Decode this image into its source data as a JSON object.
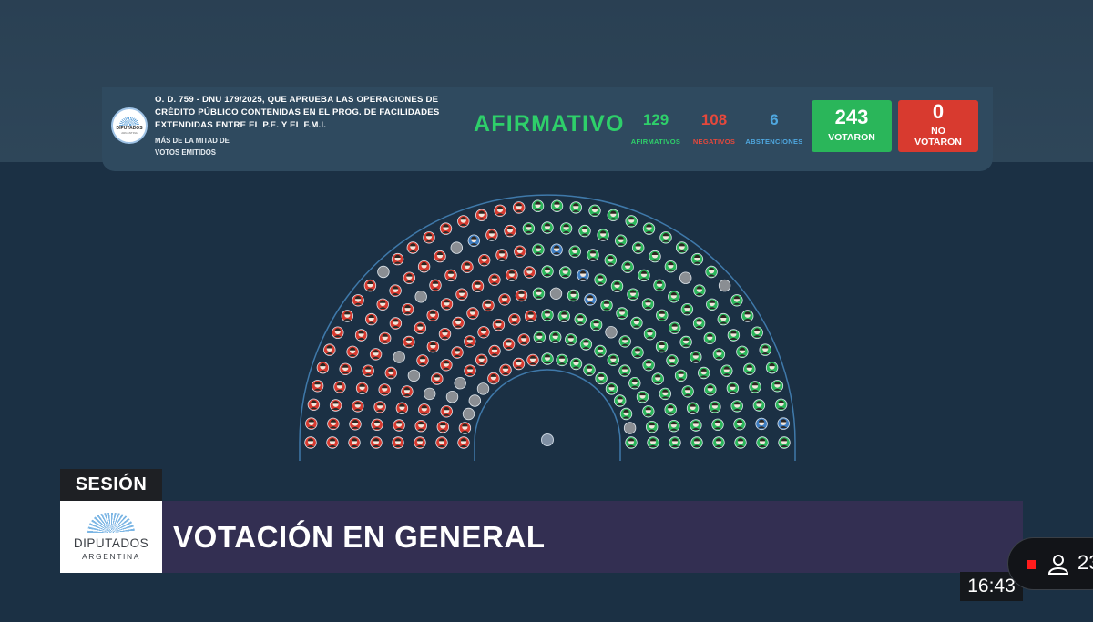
{
  "header": {
    "logo": {
      "text": "DIPUTADOS",
      "sub": "ARGENTINA"
    },
    "title": "O. D. 759 - DNU 179/2025, QUE APRUEBA LAS OPERACIONES DE CRÉDITO PÚBLICO CONTENIDAS EN EL PROG. DE FACILIDADES EXTENDIDAS ENTRE EL P.E. Y EL F.M.I.",
    "majority_line1": "MÁS DE LA MITAD DE",
    "majority_line2": "VOTOS EMITIDOS",
    "result": "AFIRMATIVO",
    "afirmativos": {
      "value": "129",
      "label": "AFIRMATIVOS"
    },
    "negativos": {
      "value": "108",
      "label": "NEGATIVOS"
    },
    "abstenciones": {
      "value": "6",
      "label": "ABSTENCIONES"
    },
    "votaron": {
      "value": "243",
      "label": "VOTARON"
    },
    "no_votaron": {
      "value": "0",
      "label_line1": "NO",
      "label_line2": "VOTARON"
    }
  },
  "chamber": {
    "colors": {
      "afirmativo": "#2ab65a",
      "negativo": "#d83a2f",
      "abstencion": "#3d7cc0",
      "empty": "#8a8e93",
      "face": "#f1e6dc",
      "hair": "#2d2620"
    },
    "total_seats": 257,
    "presiding_seat": "1"
  },
  "lower_third": {
    "section": "SESIÓN",
    "logo_text": "DIPUTADOS",
    "logo_sub": "ARGENTINA",
    "headline": "VOTACIÓN EN GENERAL"
  },
  "clock": "16:43",
  "live": {
    "viewers": "23"
  }
}
